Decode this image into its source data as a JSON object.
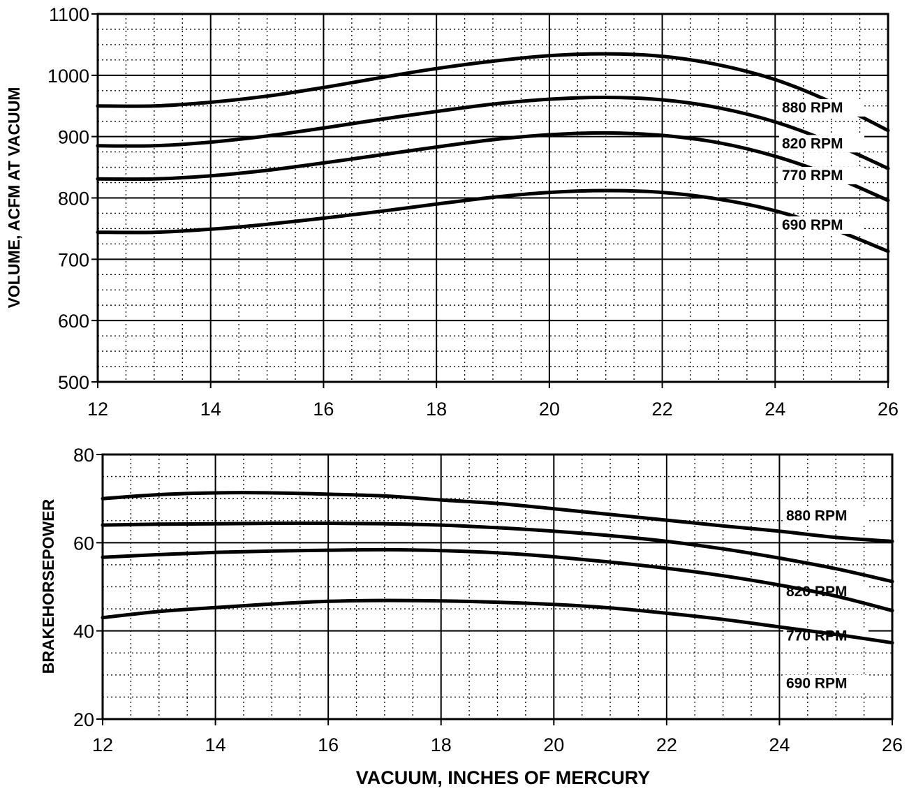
{
  "chart_data": [
    {
      "type": "line",
      "title": "",
      "xlabel": "",
      "ylabel": "VOLUME, ACFM AT VACUUM",
      "xlim": [
        12,
        26
      ],
      "ylim": [
        500,
        1100
      ],
      "xticks": [
        "12",
        "14",
        "16",
        "18",
        "20",
        "22",
        "24",
        "26"
      ],
      "yticks": [
        "500",
        "600",
        "700",
        "800",
        "900",
        "1000",
        "1100"
      ],
      "grid": true,
      "series": [
        {
          "name": "880 RPM",
          "x": [
            12,
            13,
            14,
            15,
            16,
            17,
            18,
            19,
            20,
            21,
            22,
            23,
            24,
            25,
            26
          ],
          "y": [
            950,
            950,
            956,
            966,
            980,
            996,
            1011,
            1023,
            1032,
            1035,
            1031,
            1017,
            993,
            956,
            910
          ]
        },
        {
          "name": "820 RPM",
          "x": [
            12,
            13,
            14,
            15,
            16,
            17,
            18,
            19,
            20,
            21,
            22,
            23,
            24,
            25,
            26
          ],
          "y": [
            885,
            885,
            891,
            901,
            914,
            928,
            941,
            953,
            961,
            964,
            960,
            947,
            924,
            890,
            848
          ]
        },
        {
          "name": "770 RPM",
          "x": [
            12,
            13,
            14,
            15,
            16,
            17,
            18,
            19,
            20,
            21,
            22,
            23,
            24,
            25,
            26
          ],
          "y": [
            831,
            831,
            836,
            845,
            857,
            870,
            883,
            895,
            903,
            906,
            902,
            890,
            868,
            836,
            796
          ]
        },
        {
          "name": "690 RPM",
          "x": [
            12,
            13,
            14,
            15,
            16,
            17,
            18,
            19,
            20,
            21,
            22,
            23,
            24,
            25,
            26
          ],
          "y": [
            744,
            744,
            749,
            757,
            767,
            778,
            790,
            801,
            809,
            812,
            809,
            798,
            779,
            750,
            713
          ]
        }
      ]
    },
    {
      "type": "line",
      "title": "",
      "xlabel": "VACUUM, INCHES OF MERCURY",
      "ylabel": "BRAKEHORSEPOWER",
      "xlim": [
        12,
        26
      ],
      "ylim": [
        20,
        80
      ],
      "xticks": [
        "12",
        "14",
        "16",
        "18",
        "20",
        "22",
        "24",
        "26"
      ],
      "yticks": [
        "20",
        "40",
        "60",
        "80"
      ],
      "grid": true,
      "series": [
        {
          "name": "880 RPM",
          "x": [
            12,
            13,
            14,
            15,
            16,
            17,
            18,
            19,
            20,
            21,
            22,
            23,
            24,
            25,
            26
          ],
          "y": [
            70,
            70.9,
            71.3,
            71.3,
            71,
            70.6,
            69.7,
            68.9,
            67.7,
            66.4,
            65.1,
            63.8,
            62.6,
            61.2,
            60.3
          ]
        },
        {
          "name": "820 RPM",
          "x": [
            12,
            13,
            14,
            15,
            16,
            17,
            18,
            19,
            20,
            21,
            22,
            23,
            24,
            25,
            26
          ],
          "y": [
            64,
            64.2,
            64.3,
            64.4,
            64.4,
            64.3,
            64,
            63.4,
            62.6,
            61.6,
            60.3,
            58.6,
            56.5,
            54.1,
            51.2
          ]
        },
        {
          "name": "770 RPM",
          "x": [
            12,
            13,
            14,
            15,
            16,
            17,
            18,
            19,
            20,
            21,
            22,
            23,
            24,
            25,
            26
          ],
          "y": [
            56.7,
            57.3,
            57.8,
            58.1,
            58.3,
            58.4,
            58.2,
            57.7,
            56.8,
            55.6,
            54.2,
            52.5,
            50.4,
            47.9,
            44.6
          ]
        },
        {
          "name": "690 RPM",
          "x": [
            12,
            13,
            14,
            15,
            16,
            17,
            18,
            19,
            20,
            21,
            22,
            23,
            24,
            25,
            26
          ],
          "y": [
            43,
            44.4,
            45.3,
            46.1,
            46.7,
            46.9,
            46.8,
            46.5,
            46,
            45.2,
            44,
            42.6,
            40.9,
            39.2,
            37.3
          ]
        }
      ]
    }
  ]
}
